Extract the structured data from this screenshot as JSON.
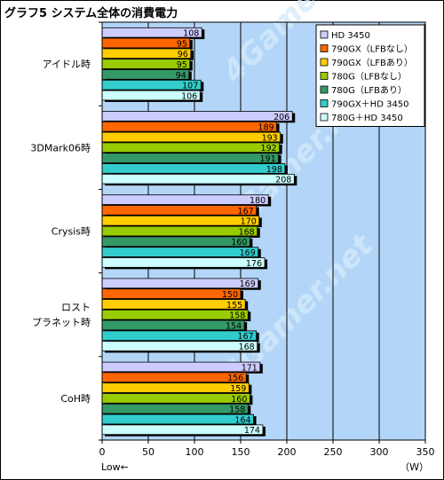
{
  "title": "グラフ5  システム全体の消費電力",
  "colors": {
    "plot_bg": "#b3d6f8",
    "grid": "#000000",
    "watermark": "#d6e9fb"
  },
  "chart_data": {
    "type": "bar",
    "orientation": "horizontal",
    "categories": [
      "アイドル時",
      "3DMark06時",
      "Crysis時",
      "ロスト\nプラネット時",
      "CoH時"
    ],
    "series": [
      {
        "name": "HD 3450",
        "color": "#ccccff",
        "values": [
          108,
          206,
          180,
          169,
          171
        ]
      },
      {
        "name": "790GX（LFBなし）",
        "color": "#ff6600",
        "values": [
          95,
          189,
          167,
          150,
          156
        ]
      },
      {
        "name": "790GX（LFBあり）",
        "color": "#ffcc00",
        "values": [
          96,
          193,
          170,
          155,
          159
        ]
      },
      {
        "name": "780G（LFBなし）",
        "color": "#99cc00",
        "values": [
          95,
          192,
          168,
          158,
          160
        ]
      },
      {
        "name": "780G（LFBあり）",
        "color": "#339966",
        "values": [
          94,
          191,
          160,
          154,
          158
        ]
      },
      {
        "name": "790GX＋HD 3450",
        "color": "#33cccc",
        "values": [
          107,
          198,
          169,
          167,
          164
        ]
      },
      {
        "name": "780G＋HD 3450",
        "color": "#ccffff",
        "values": [
          106,
          208,
          176,
          168,
          174
        ]
      }
    ],
    "xlim": [
      0,
      350
    ],
    "xticks": [
      0,
      50,
      100,
      150,
      200,
      250,
      300,
      350
    ],
    "xlabel_left": "Low←",
    "unit": "（W）",
    "grid": "vertical",
    "legend_position": "top-right",
    "watermark": "4Gamer.net"
  }
}
